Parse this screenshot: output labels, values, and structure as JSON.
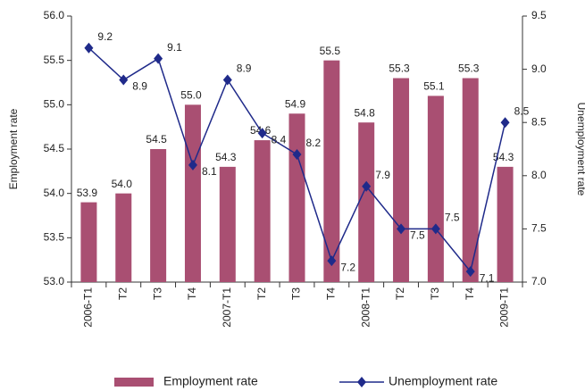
{
  "chart_data": {
    "type": "bar",
    "categories": [
      "2006-T1",
      "T2",
      "T3",
      "T4",
      "2007-T1",
      "T2",
      "T3",
      "T4",
      "2008-T1",
      "T2",
      "T3",
      "T4",
      "2009-T1"
    ],
    "y_label": "Employment rate",
    "y2_label": "Unemployment rate",
    "series": [
      {
        "name": "Employment rate",
        "type": "bar",
        "color": "#a94f72",
        "values": [
          53.9,
          54.0,
          54.5,
          55.0,
          54.3,
          54.6,
          54.9,
          55.5,
          54.8,
          55.3,
          55.1,
          55.3,
          54.3
        ],
        "value_labels": [
          "53.9",
          "54.0",
          "54.5",
          "55.0",
          "54.3",
          "54.6",
          "54.9",
          "55.5",
          "54.8",
          "55.3",
          "55.1",
          "55.3",
          "54.3"
        ]
      },
      {
        "name": "Unemployment rate",
        "type": "line",
        "color": "#1f2a8a",
        "axis": "y2",
        "values": [
          9.2,
          8.9,
          9.1,
          8.1,
          8.9,
          8.4,
          8.2,
          7.2,
          7.9,
          7.5,
          7.5,
          7.1,
          8.5
        ]
      }
    ],
    "ylim": [
      53.0,
      56.0
    ],
    "yticks": [
      {
        "value": 53,
        "label": "53.0"
      },
      53.5,
      {
        "value": 54,
        "label": "54.0"
      },
      54.5,
      {
        "value": 55,
        "label": "55.0"
      },
      55.5,
      {
        "value": 56,
        "label": "56.0"
      }
    ],
    "y2lim": [
      7.0,
      9.5
    ],
    "y2ticks": [
      {
        "value": 7,
        "label": "7.0"
      },
      7.5,
      {
        "value": 8,
        "label": "8.0"
      },
      8.5,
      {
        "value": 9,
        "label": "9.0"
      },
      9.5
    ],
    "grid": false
  }
}
